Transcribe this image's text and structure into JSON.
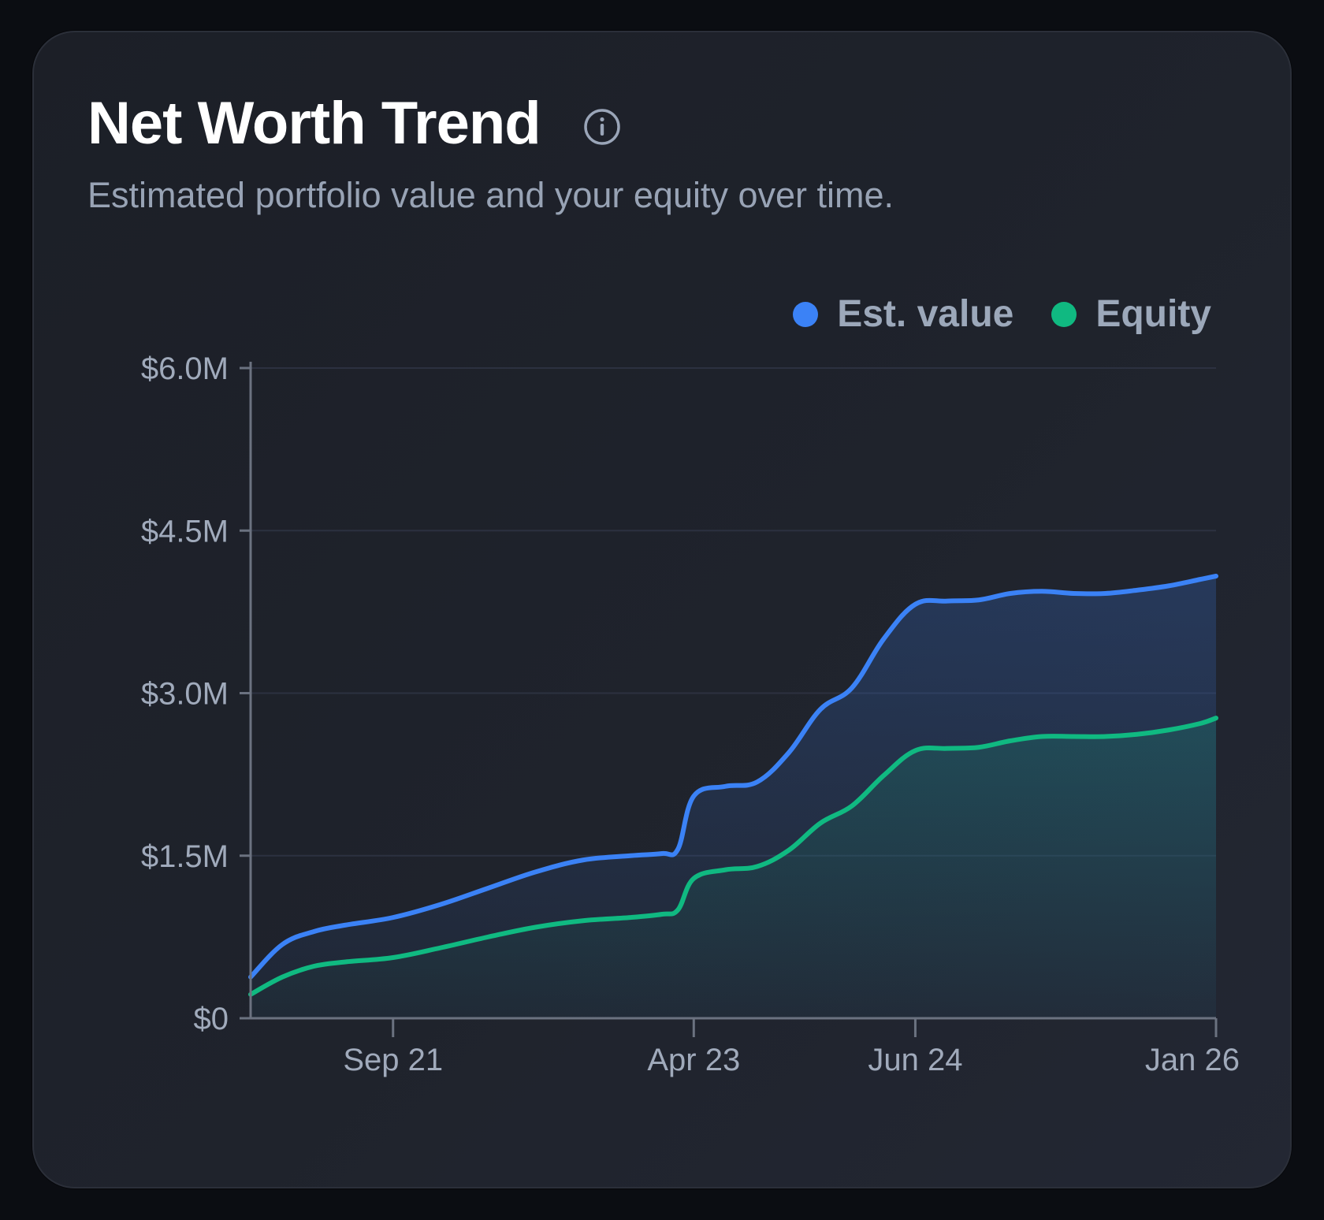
{
  "card": {
    "title": "Net Worth Trend",
    "subtitle": "Estimated portfolio value and your equity over time."
  },
  "icons": {
    "info": "info-circle-icon"
  },
  "colors": {
    "est_value": "#3b82f6",
    "equity": "#10b981",
    "axis": "#6b7280",
    "tick_text": "#a0aabb"
  },
  "chart_data": {
    "type": "area",
    "title": "Net Worth Trend",
    "subtitle": "Estimated portfolio value and your equity over time.",
    "legend_position": "top-right",
    "grid": true,
    "y_ticks": [
      {
        "value": 0,
        "label": "$0"
      },
      {
        "value": 1.5,
        "label": "$1.5M"
      },
      {
        "value": 3.0,
        "label": "$3.0M"
      },
      {
        "value": 4.5,
        "label": "$4.5M"
      },
      {
        "value": 6.0,
        "label": "$6.0M"
      }
    ],
    "x_ticks": [
      {
        "value": "2021-09",
        "label": "Sep 21"
      },
      {
        "value": "2023-04",
        "label": "Apr 23"
      },
      {
        "value": "2024-06",
        "label": "Jun 24"
      },
      {
        "value": "2026-01",
        "label": "Jan 26"
      }
    ],
    "ylim": [
      0,
      6.0
    ],
    "xlim": [
      "2020-12",
      "2026-01"
    ],
    "y_unit": "$M",
    "x": [
      "2020-12",
      "2021-02",
      "2021-04",
      "2021-06",
      "2021-09",
      "2021-12",
      "2022-03",
      "2022-06",
      "2022-09",
      "2022-12",
      "2023-02",
      "2023-03",
      "2023-04",
      "2023-06",
      "2023-08",
      "2023-10",
      "2023-12",
      "2024-02",
      "2024-04",
      "2024-06",
      "2024-08",
      "2024-10",
      "2024-12",
      "2025-02",
      "2025-04",
      "2025-06",
      "2025-08",
      "2025-10",
      "2025-12",
      "2026-01"
    ],
    "series": [
      {
        "name": "Est. value",
        "color": "#3b82f6",
        "values": [
          0.38,
          0.68,
          0.8,
          0.86,
          0.93,
          1.05,
          1.2,
          1.35,
          1.46,
          1.5,
          1.52,
          1.56,
          2.05,
          2.14,
          2.18,
          2.45,
          2.85,
          3.05,
          3.5,
          3.82,
          3.85,
          3.86,
          3.92,
          3.94,
          3.92,
          3.92,
          3.95,
          3.99,
          4.05,
          4.08
        ]
      },
      {
        "name": "Equity",
        "color": "#10b981",
        "values": [
          0.22,
          0.38,
          0.48,
          0.52,
          0.56,
          0.65,
          0.75,
          0.84,
          0.9,
          0.93,
          0.96,
          1.0,
          1.29,
          1.37,
          1.4,
          1.55,
          1.8,
          1.96,
          2.24,
          2.47,
          2.49,
          2.5,
          2.56,
          2.6,
          2.6,
          2.6,
          2.62,
          2.66,
          2.72,
          2.77
        ]
      }
    ]
  }
}
